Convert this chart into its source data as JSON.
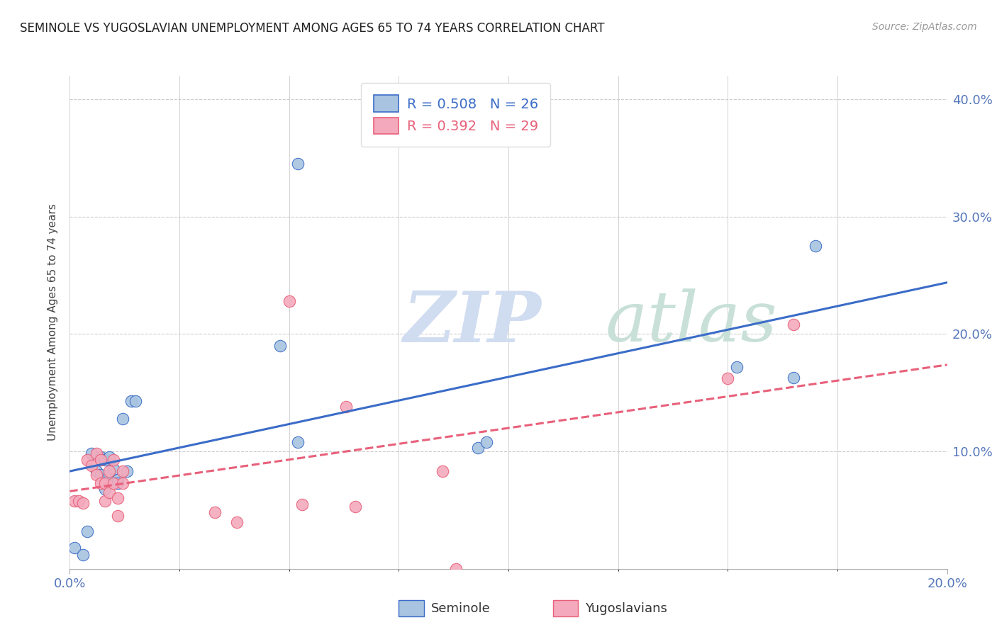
{
  "title": "SEMINOLE VS YUGOSLAVIAN UNEMPLOYMENT AMONG AGES 65 TO 74 YEARS CORRELATION CHART",
  "source": "Source: ZipAtlas.com",
  "ylabel": "Unemployment Among Ages 65 to 74 years",
  "xlim": [
    0.0,
    0.2
  ],
  "ylim": [
    0.0,
    0.42
  ],
  "seminole_color": "#A8C4E0",
  "yugoslavian_color": "#F4AABC",
  "trend_seminole_color": "#3B6CC8",
  "trend_yugoslavian_color": "#E8607A",
  "watermark_zip": "ZIP",
  "watermark_atlas": "atlas",
  "legend_seminole_R": "R = 0.508",
  "legend_seminole_N": "N = 26",
  "legend_yugoslavian_R": "R = 0.392",
  "legend_yugoslavian_N": "N = 29",
  "seminole_x": [
    0.001,
    0.003,
    0.004,
    0.005,
    0.006,
    0.007,
    0.007,
    0.008,
    0.008,
    0.009,
    0.009,
    0.01,
    0.011,
    0.011,
    0.012,
    0.013,
    0.014,
    0.015,
    0.048,
    0.052,
    0.052,
    0.093,
    0.095,
    0.152,
    0.165,
    0.17
  ],
  "seminole_y": [
    0.018,
    0.012,
    0.032,
    0.098,
    0.083,
    0.095,
    0.08,
    0.093,
    0.068,
    0.095,
    0.08,
    0.085,
    0.076,
    0.073,
    0.128,
    0.083,
    0.143,
    0.143,
    0.19,
    0.108,
    0.345,
    0.103,
    0.108,
    0.172,
    0.163,
    0.275
  ],
  "yugoslavian_x": [
    0.001,
    0.002,
    0.003,
    0.004,
    0.005,
    0.006,
    0.006,
    0.007,
    0.007,
    0.008,
    0.008,
    0.009,
    0.009,
    0.01,
    0.01,
    0.011,
    0.011,
    0.012,
    0.012,
    0.033,
    0.038,
    0.05,
    0.053,
    0.063,
    0.065,
    0.085,
    0.088,
    0.15,
    0.165
  ],
  "yugoslavian_y": [
    0.058,
    0.058,
    0.056,
    0.093,
    0.088,
    0.098,
    0.08,
    0.093,
    0.073,
    0.073,
    0.058,
    0.083,
    0.065,
    0.093,
    0.073,
    0.06,
    0.045,
    0.073,
    0.083,
    0.048,
    0.04,
    0.228,
    0.055,
    0.138,
    0.053,
    0.083,
    0.0,
    0.162,
    0.208
  ],
  "trend_seminole_start_x": 0.0,
  "trend_seminole_end_x": 0.2,
  "trend_yugoslavian_start_x": 0.0,
  "trend_yugoslavian_end_x": 0.2
}
